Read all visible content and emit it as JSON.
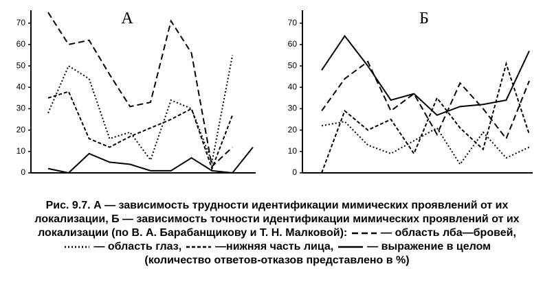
{
  "chart_data": [
    {
      "type": "line",
      "title": "А",
      "categories": [
        null,
        null,
        null,
        null,
        null,
        null,
        null,
        null,
        null,
        null,
        null
      ],
      "ylim": [
        0,
        76
      ],
      "yticks": [
        0,
        10,
        20,
        30,
        40,
        50,
        60,
        70
      ],
      "series": [
        {
          "line_style": "dashed",
          "color": "#000000",
          "values": [
            75,
            60,
            62,
            46,
            31,
            33,
            71,
            56,
            3,
            12,
            null
          ]
        },
        {
          "line_style": "dotted",
          "color": "#000000",
          "values": [
            28,
            50,
            44,
            16,
            19,
            6,
            34,
            30,
            5,
            55,
            null
          ]
        },
        {
          "line_style": "short-dashed",
          "color": "#000000",
          "values": [
            35,
            38,
            16,
            12,
            17,
            21,
            25,
            30,
            2,
            27,
            null
          ]
        },
        {
          "line_style": "solid",
          "color": "#000000",
          "values": [
            2,
            0,
            9,
            5,
            4,
            1,
            1,
            7,
            1,
            0,
            12
          ]
        }
      ]
    },
    {
      "type": "line",
      "title": "Б",
      "categories": [
        null,
        null,
        null,
        null,
        null,
        null,
        null,
        null,
        null,
        null
      ],
      "ylim": [
        0,
        76
      ],
      "yticks": [
        0,
        10,
        20,
        30,
        40,
        50,
        60,
        70
      ],
      "series": [
        {
          "line_style": "dashed",
          "color": "#000000",
          "values": [
            29,
            44,
            52,
            29,
            37,
            18,
            42,
            30,
            16,
            43
          ]
        },
        {
          "line_style": "dotted",
          "color": "#000000",
          "values": [
            22,
            24,
            13,
            9,
            15,
            21,
            4,
            19,
            7,
            12
          ]
        },
        {
          "line_style": "short-dashed",
          "color": "#000000",
          "values": [
            0,
            29,
            20,
            25,
            9,
            35,
            21,
            11,
            51,
            18
          ]
        },
        {
          "line_style": "solid",
          "color": "#000000",
          "values": [
            48,
            64,
            50,
            34,
            37,
            27,
            31,
            32,
            34,
            57
          ]
        }
      ]
    }
  ],
  "caption": {
    "label": "Рис. 9.7.",
    "text": [
      "А — зависимость трудности идентификации мимических проявлений от их",
      "локализации, Б — зависимость точности идентификации мимических проявлений от их",
      "локализации (по В. А. Барабанщикову и Т. Н. Малковой):"
    ],
    "legend": [
      {
        "line_style": "dashed",
        "label": "— область лба—бровей,"
      },
      {
        "line_style": "dotted",
        "label": "— область глаз,"
      },
      {
        "line_style": "short-dashed",
        "label": "—нижняя часть лица,"
      },
      {
        "line_style": "solid",
        "label": "— выражение в целом"
      }
    ],
    "note": "(количество ответов-отказов представлено в %)"
  }
}
